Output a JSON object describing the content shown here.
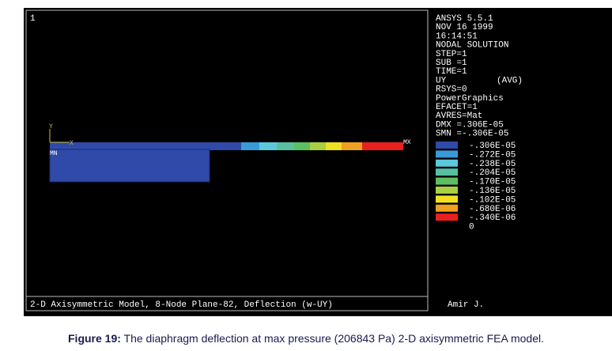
{
  "window_number": "1",
  "info_lines": [
    "ANSYS 5.5.1",
    "NOV 16 1999",
    "16:14:51",
    "NODAL SOLUTION",
    "STEP=1",
    "SUB =1",
    "TIME=1",
    "UY",
    "RSYS=0",
    "PowerGraphics",
    "EFACET=1",
    "AVRES=Mat",
    "DMX =.306E-05",
    "SMN =-.306E-05"
  ],
  "avg_label": "(AVG)",
  "legend": [
    {
      "color": "#2f4aa8",
      "label": "-.306E-05"
    },
    {
      "color": "#3a9ad8",
      "label": "-.272E-05"
    },
    {
      "color": "#5cc8dc",
      "label": "-.238E-05"
    },
    {
      "color": "#58c0a0",
      "label": "-.204E-05"
    },
    {
      "color": "#5cc060",
      "label": "-.170E-05"
    },
    {
      "color": "#a8d040",
      "label": "-.136E-05"
    },
    {
      "color": "#f0e020",
      "label": "-.102E-05"
    },
    {
      "color": "#f0a020",
      "label": "-.680E-06"
    },
    {
      "color": "#e82020",
      "label": "-.340E-06"
    }
  ],
  "legend_end": "0",
  "axis_y": "Y",
  "axis_x": "X",
  "min_label": "MN",
  "max_label": "MX",
  "footer": "2-D Axisymmetric Model, 8-Node Plane-82, Deflection (w-UY)",
  "author": "Amir J.",
  "caption": {
    "label": "Figure 19:",
    "text": " The diaphragm deflection at max pressure (206843 Pa) 2-D axisymmetric FEA model."
  }
}
